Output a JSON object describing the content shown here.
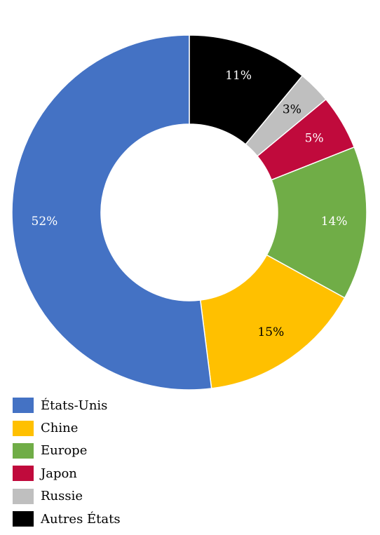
{
  "chart_data": {
    "type": "pie",
    "donut": true,
    "title": "",
    "categories": [
      "États-Unis",
      "Chine",
      "Europe",
      "Japon",
      "Russie",
      "Autres États"
    ],
    "series": [
      {
        "values": [
          52,
          15,
          14,
          5,
          3,
          11
        ],
        "labels": [
          "52%",
          "15%",
          "14%",
          "5%",
          "3%",
          "11%"
        ]
      }
    ],
    "colors": [
      "#4472C4",
      "#FFC000",
      "#70AD47",
      "#C00A3C",
      "#BFBFBF",
      "#000000"
    ],
    "label_colors": [
      "#ffffff",
      "#000000",
      "#ffffff",
      "#ffffff",
      "#000000",
      "#ffffff"
    ],
    "order_clockwise_from_top": [
      "Autres États",
      "Russie",
      "Japon",
      "Europe",
      "Chine",
      "États-Unis"
    ],
    "legend_position": "bottom-left"
  }
}
